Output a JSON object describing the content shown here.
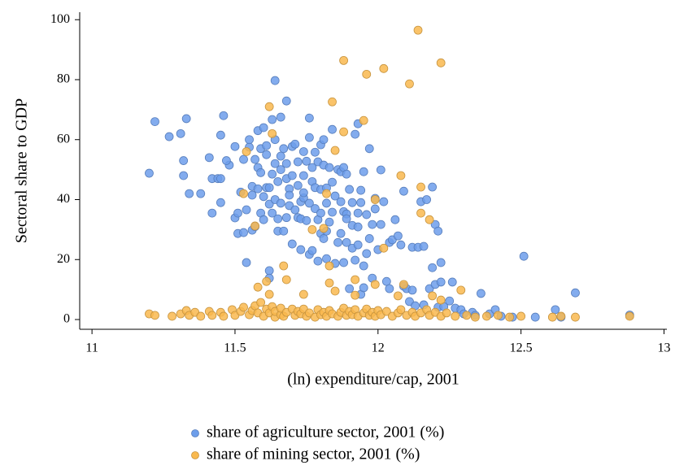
{
  "chart_data": {
    "type": "scatter",
    "x_label": "(ln) expenditure/cap, 2001",
    "y_label": "Sectoral share to GDP",
    "xlim": [
      10.957,
      13.01
    ],
    "ylim": [
      -3.25,
      102.5
    ],
    "xticks": [
      11,
      11.5,
      12,
      12.5,
      13
    ],
    "yticks": [
      0,
      20,
      40,
      60,
      80,
      100
    ],
    "legend": "bottom",
    "series": [
      {
        "name": "share of agriculture sector, 2001 (%)",
        "color": "#6d9eeb",
        "x": [
          11.2,
          11.22,
          11.27,
          11.31,
          11.32,
          11.32,
          11.33,
          11.34,
          11.38,
          11.41,
          11.42,
          11.42,
          11.44,
          11.45,
          11.45,
          11.45,
          11.46,
          11.48,
          11.47,
          11.5,
          11.5,
          11.51,
          11.51,
          11.52,
          11.53,
          11.53,
          11.54,
          11.54,
          11.55,
          11.55,
          11.56,
          11.56,
          11.57,
          11.56,
          11.57,
          11.58,
          11.58,
          11.58,
          11.59,
          11.59,
          11.59,
          11.6,
          11.6,
          11.6,
          11.61,
          11.61,
          11.61,
          11.62,
          11.62,
          11.62,
          11.62,
          11.63,
          11.63,
          11.63,
          11.64,
          11.64,
          11.64,
          11.64,
          11.65,
          11.65,
          11.65,
          11.66,
          11.66,
          11.66,
          11.66,
          11.67,
          11.67,
          11.68,
          11.68,
          11.68,
          11.68,
          11.69,
          11.69,
          11.69,
          11.7,
          11.7,
          11.7,
          11.71,
          11.71,
          11.72,
          11.72,
          11.72,
          11.73,
          11.73,
          11.73,
          11.74,
          11.74,
          11.74,
          11.74,
          11.75,
          11.75,
          11.76,
          11.76,
          11.76,
          11.76,
          11.77,
          11.77,
          11.77,
          11.78,
          11.78,
          11.78,
          11.79,
          11.79,
          11.79,
          11.8,
          11.8,
          11.8,
          11.8,
          11.81,
          11.81,
          11.81,
          11.82,
          11.82,
          11.82,
          11.82,
          11.83,
          11.83,
          11.84,
          11.84,
          11.84,
          11.85,
          11.85,
          11.86,
          11.86,
          11.87,
          11.87,
          11.87,
          11.88,
          11.88,
          11.88,
          11.89,
          11.89,
          11.89,
          11.89,
          11.9,
          11.9,
          11.91,
          11.91,
          11.91,
          11.92,
          11.92,
          11.93,
          11.93,
          11.93,
          11.93,
          11.94,
          11.94,
          11.94,
          11.95,
          11.95,
          11.95,
          11.96,
          11.96,
          11.97,
          11.97,
          11.98,
          11.98,
          11.99,
          11.99,
          12.0,
          12.01,
          12.01,
          12.02,
          12.03,
          12.04,
          12.04,
          12.05,
          12.06,
          12.07,
          12.08,
          12.09,
          12.09,
          12.1,
          12.11,
          12.12,
          12.12,
          12.13,
          12.14,
          12.15,
          12.16,
          12.16,
          12.17,
          12.18,
          12.19,
          12.19,
          12.2,
          12.2,
          12.21,
          12.21,
          12.22,
          12.22,
          12.23,
          12.25,
          12.26,
          12.27,
          12.29,
          12.3,
          12.33,
          12.34,
          12.36,
          12.39,
          12.41,
          12.43,
          12.47,
          12.51,
          12.55,
          12.62,
          12.64,
          12.69,
          12.88
        ],
        "values": [
          48.8,
          66,
          61,
          62,
          53,
          48,
          67,
          42,
          42,
          54,
          35.5,
          47,
          47,
          39,
          61.5,
          47,
          68,
          51.5,
          53,
          57.7,
          33.9,
          28.7,
          35.5,
          42.5,
          53.4,
          29,
          36.6,
          19,
          57.5,
          60,
          41.5,
          44.4,
          53.4,
          29.8,
          31,
          63,
          50.7,
          43.6,
          57,
          35.5,
          49,
          41,
          33.3,
          64,
          58,
          44,
          55,
          38.5,
          16.3,
          13.8,
          44,
          48.5,
          35.5,
          66.7,
          52,
          60,
          79.7,
          40,
          29.5,
          46,
          33.6,
          50,
          67.5,
          54.5,
          38.8,
          29.5,
          57,
          47,
          72.9,
          34,
          52,
          43.6,
          41.5,
          38,
          57.7,
          25.2,
          48,
          36.6,
          58.5,
          34,
          44.7,
          52.6,
          39.3,
          33.6,
          23.3,
          56,
          40.6,
          48,
          42.3,
          52.8,
          33,
          60.7,
          67.2,
          21.7,
          38.8,
          46,
          50.7,
          23,
          55.8,
          37,
          44,
          19.5,
          33.3,
          52.6,
          58.3,
          43.4,
          28.7,
          35.5,
          27,
          51.5,
          60,
          43.9,
          20.3,
          38.8,
          29.5,
          32.5,
          50.7,
          45.8,
          63.4,
          35.8,
          18.7,
          41.2,
          25.7,
          50,
          39.3,
          49.3,
          28.7,
          19,
          50.7,
          36,
          35.2,
          25.7,
          33.6,
          48.5,
          10.3,
          43.4,
          31.4,
          39,
          23.8,
          61.8,
          19.8,
          35.5,
          30.9,
          65.3,
          24.9,
          43.1,
          39,
          8.4,
          17.9,
          10.6,
          49.3,
          35,
          22,
          27,
          57,
          31.7,
          13.8,
          40.4,
          36.9,
          23.3,
          49.9,
          31.7,
          39.3,
          12.7,
          25.7,
          10.3,
          26.6,
          33.3,
          27.9,
          24.9,
          11.1,
          42.8,
          10.3,
          6,
          24.1,
          9.8,
          4.6,
          24.1,
          39.3,
          24.4,
          4.9,
          40,
          10.3,
          44.2,
          17.3,
          31.7,
          11.7,
          29.5,
          4.1,
          19,
          12.5,
          4.3,
          6.2,
          12.5,
          3.8,
          3.3,
          1.9,
          2.4,
          1.4,
          8.7,
          1.9,
          3.3,
          1.1,
          0.8,
          21.1,
          0.8,
          3.3,
          0.8,
          8.9,
          1.5
        ]
      },
      {
        "name": "share of mining sector, 2001 (%)",
        "color": "#f9b94f",
        "x": [
          12.14,
          11.88,
          12.22,
          12.02,
          11.96,
          12.11,
          11.62,
          11.84,
          11.95,
          11.88,
          11.63,
          11.85,
          11.54,
          12.08,
          12.15,
          11.53,
          11.82,
          11.99,
          12.15,
          12.18,
          11.57,
          11.77,
          11.81,
          12.02,
          11.67,
          11.83,
          11.61,
          11.68,
          11.58,
          11.83,
          11.92,
          11.99,
          12.09,
          12.29,
          11.62,
          11.74,
          11.85,
          11.92,
          12.07,
          12.19,
          12.22,
          11.2,
          11.22,
          11.28,
          11.31,
          11.33,
          11.34,
          11.36,
          11.38,
          11.41,
          11.42,
          11.45,
          11.46,
          11.49,
          11.5,
          11.52,
          11.53,
          11.55,
          11.56,
          11.57,
          11.58,
          11.59,
          11.6,
          11.61,
          11.62,
          11.63,
          11.64,
          11.64,
          11.66,
          11.66,
          11.67,
          11.68,
          11.7,
          11.71,
          11.72,
          11.73,
          11.74,
          11.75,
          11.76,
          11.78,
          11.79,
          11.8,
          11.81,
          11.82,
          11.83,
          11.84,
          11.86,
          11.87,
          11.88,
          11.89,
          11.9,
          11.91,
          11.92,
          11.93,
          11.95,
          11.96,
          11.97,
          11.98,
          11.99,
          12.0,
          12.01,
          12.03,
          12.05,
          12.07,
          12.08,
          12.1,
          12.12,
          12.13,
          12.15,
          12.17,
          12.18,
          12.2,
          12.22,
          12.24,
          12.27,
          12.31,
          12.34,
          12.38,
          12.42,
          12.46,
          12.5,
          12.61,
          12.64,
          12.69,
          12.88
        ],
        "values": [
          96.5,
          86.4,
          85.6,
          83.7,
          81.8,
          78.6,
          71,
          72.6,
          66.4,
          62.6,
          62,
          56.4,
          56,
          48,
          44.2,
          42,
          42,
          40,
          35.5,
          33.3,
          31.2,
          30,
          30.4,
          23.8,
          17.9,
          17.9,
          12.7,
          13.3,
          10.8,
          12.2,
          13.3,
          11.7,
          11.7,
          9.8,
          8.4,
          8.4,
          9.5,
          8.1,
          7.9,
          7.9,
          6.5,
          1.9,
          1.4,
          1.1,
          1.9,
          3,
          1.4,
          2.4,
          1.1,
          2.7,
          1.4,
          2.4,
          1.1,
          3.3,
          1.4,
          2.7,
          4.1,
          1.6,
          3,
          4.6,
          2.2,
          5.7,
          1.1,
          3.5,
          2.2,
          4.3,
          0.8,
          2.7,
          1.6,
          3.8,
          1.1,
          2.4,
          3.5,
          1.4,
          2.7,
          1.9,
          3.5,
          1.1,
          2.2,
          0.8,
          3.3,
          1.6,
          2.4,
          1.1,
          3,
          1.9,
          1.1,
          2.4,
          3.8,
          1.4,
          2.7,
          1.6,
          3.3,
          1.1,
          2.2,
          3.5,
          1.4,
          2.4,
          1.1,
          3,
          1.6,
          2.7,
          1.1,
          2.2,
          3.3,
          1.4,
          2.4,
          1.1,
          2.2,
          3.3,
          1.4,
          2.4,
          1.1,
          2.2,
          1.1,
          1.4,
          0.8,
          1.1,
          1.4,
          0.8,
          1.1,
          0.8,
          1.1,
          0.8,
          1.1
        ]
      }
    ]
  }
}
